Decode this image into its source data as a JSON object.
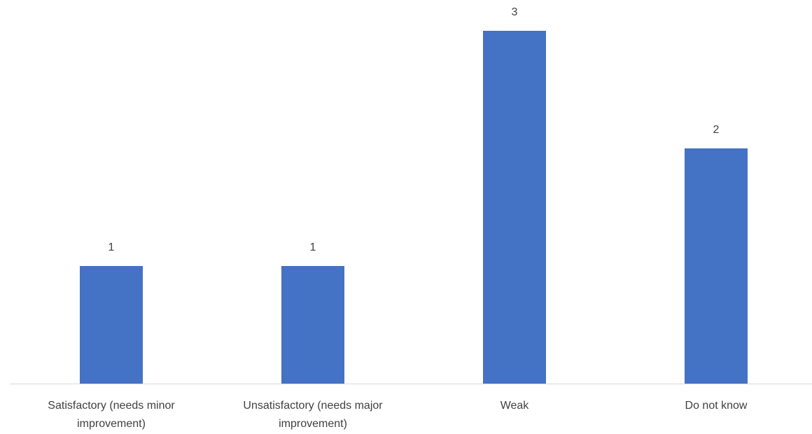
{
  "chart_data": {
    "type": "bar",
    "categories": [
      "Satisfactory (needs minor improvement)",
      "Unsatisfactory (needs major improvement)",
      "Weak",
      "Do not know"
    ],
    "values": [
      1,
      1,
      3,
      2
    ],
    "color": "#4472c4",
    "data_labels": true
  }
}
